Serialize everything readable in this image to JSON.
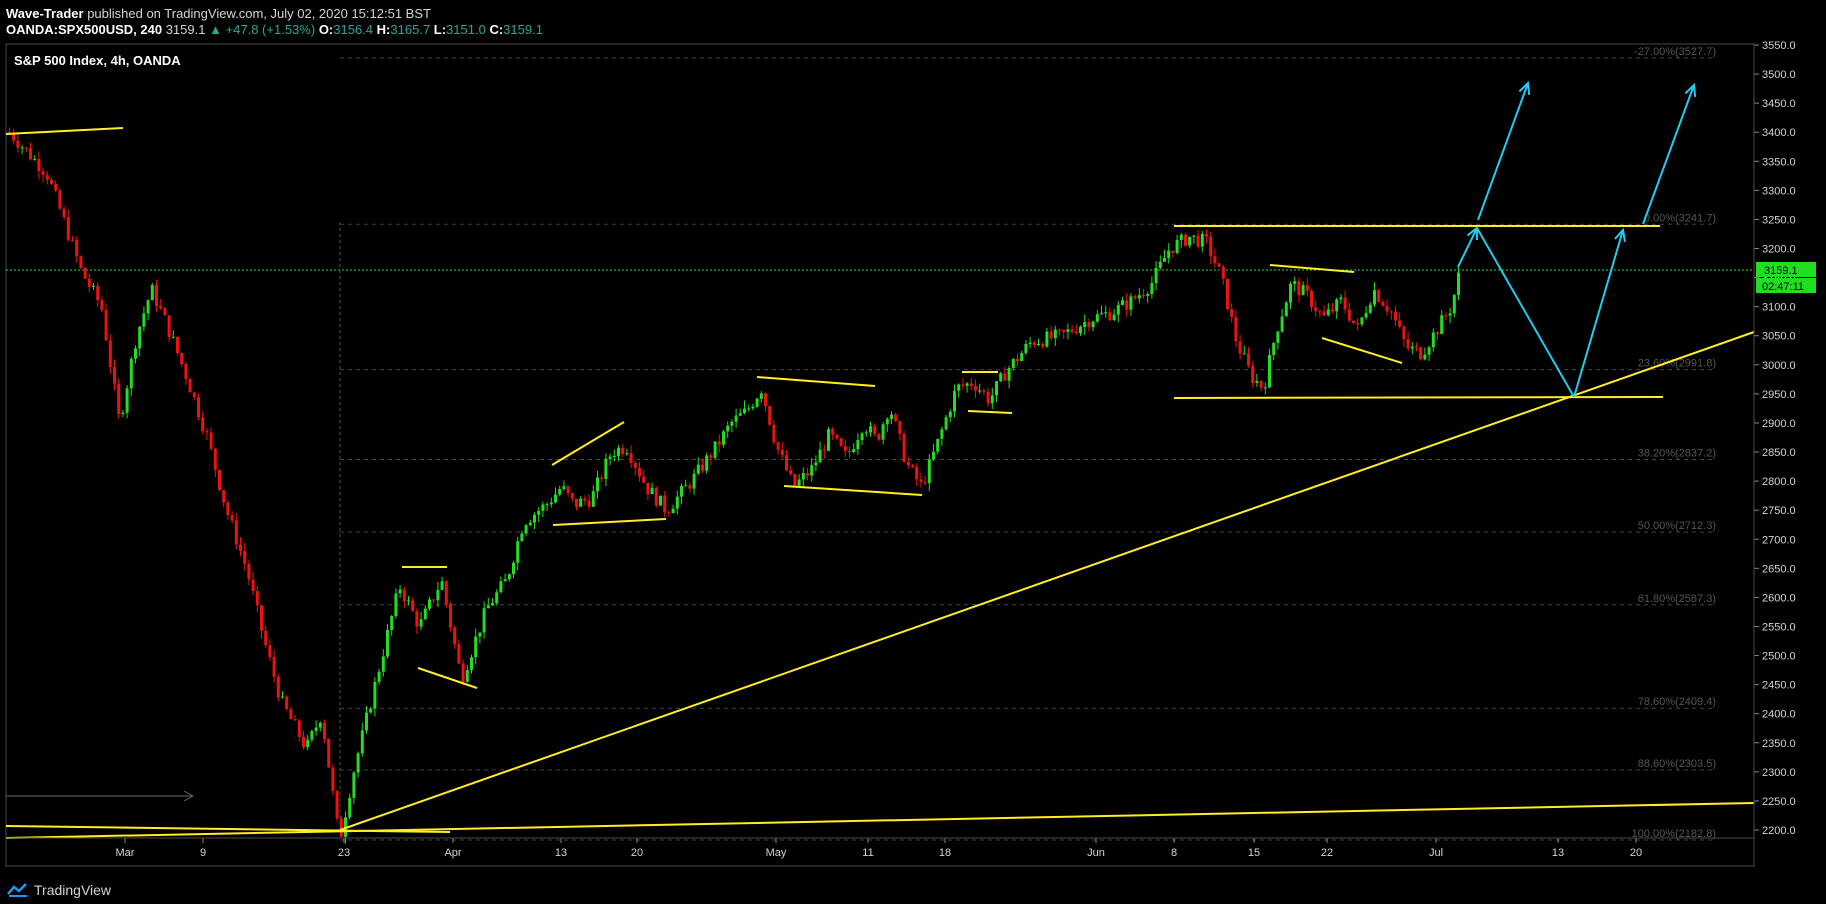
{
  "header": {
    "author": "Wave-Trader",
    "published_text": "published on TradingView.com, July 02, 2020 15:12:51 BST",
    "symbol": "OANDA:SPX500USD, 240",
    "last": "3159.1",
    "change": "▲ +47.8 (+1.53%)",
    "o_label": "O:",
    "o_value": "3156.4",
    "h_label": "H:",
    "h_value": "3165.7",
    "l_label": "L:",
    "l_value": "3151.0",
    "c_label": "C:",
    "c_value": "3159.1"
  },
  "legend_title": "S&P 500 Index, 4h, OANDA",
  "price_axis": [
    "3550.0",
    "3500.0",
    "3450.0",
    "3400.0",
    "3350.0",
    "3300.0",
    "3250.0",
    "3200.0",
    "3150.0",
    "3100.0",
    "3050.0",
    "3000.0",
    "2950.0",
    "2900.0",
    "2850.0",
    "2800.0",
    "2750.0",
    "2700.0",
    "2650.0",
    "2600.0",
    "2550.0",
    "2500.0",
    "2450.0",
    "2400.0",
    "2350.0",
    "2300.0",
    "2250.0",
    "2200.0"
  ],
  "time_axis": [
    "Mar",
    "9",
    "23",
    "Apr",
    "13",
    "20",
    "May",
    "11",
    "18",
    "Jun",
    "8",
    "15",
    "22",
    "Jul",
    "13",
    "20"
  ],
  "price_tag": {
    "value": "3159.1",
    "countdown": "02:47:11"
  },
  "fib_levels": [
    {
      "label": "-27.00%(3527.7)",
      "price": 3527.7
    },
    {
      "label": "0.00%(3241.7)",
      "price": 3241.7
    },
    {
      "label": "23.60%(2991.8)",
      "price": 2991.8
    },
    {
      "label": "38.20%(2837.2)",
      "price": 2837.2
    },
    {
      "label": "50.00%(2712.3)",
      "price": 2712.3
    },
    {
      "label": "61.80%(2587.3)",
      "price": 2587.3
    },
    {
      "label": "78.60%(2409.4)",
      "price": 2409.4
    },
    {
      "label": "88.60%(2303.5)",
      "price": 2303.5
    },
    {
      "label": "100.00%(2182.8)",
      "price": 2182.8
    }
  ],
  "colors": {
    "bull": "#22dd22",
    "bear": "#ee1111",
    "trend": "#ffee22",
    "projection": "#22ccee",
    "tag": "#22dd22"
  },
  "footer": {
    "brand": "TradingView"
  }
}
